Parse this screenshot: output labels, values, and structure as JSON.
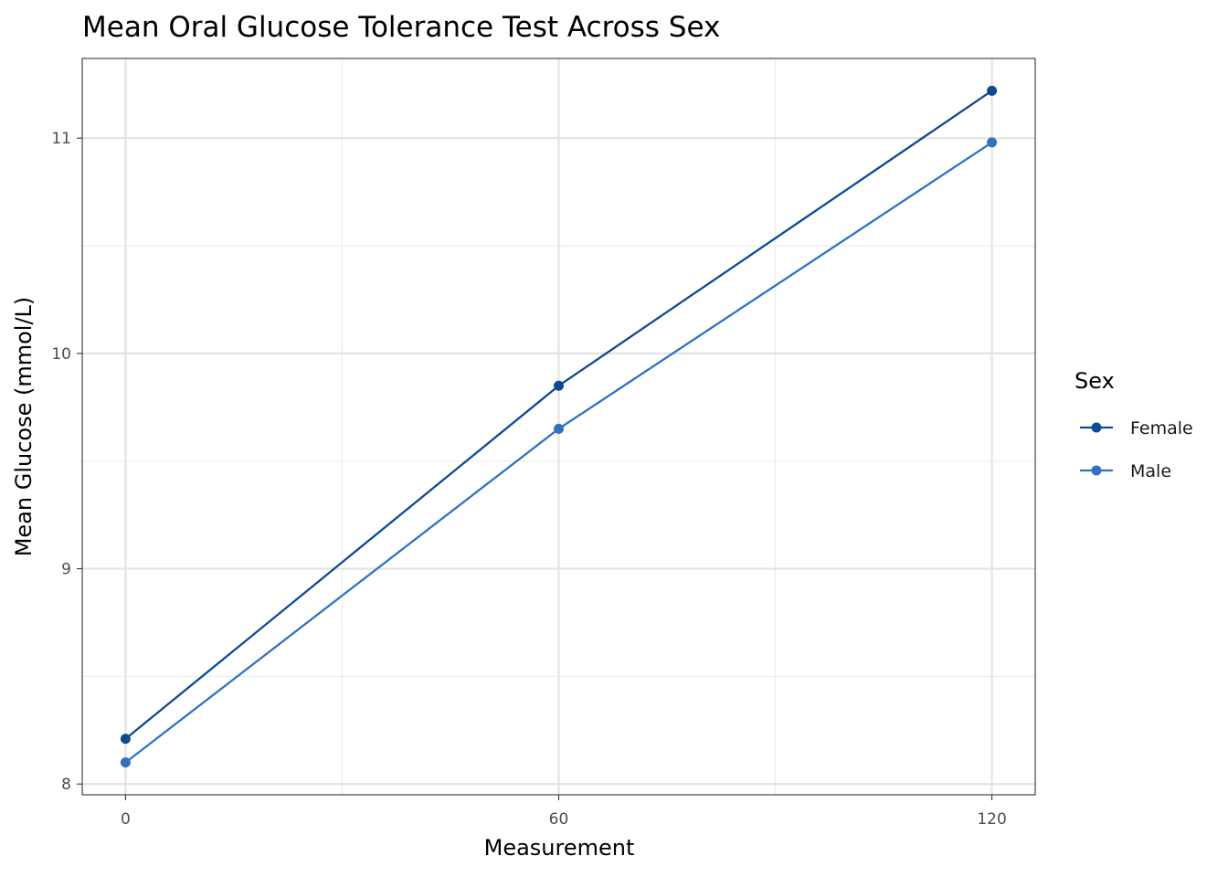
{
  "chart_data": {
    "type": "line",
    "title": "Mean Oral Glucose Tolerance Test Across Sex",
    "xlabel": "Measurement",
    "ylabel": "Mean Glucose (mmol/L)",
    "x": [
      0,
      60,
      120
    ],
    "xlim": [
      -6,
      126
    ],
    "ylim": [
      7.95,
      11.37
    ],
    "x_ticks": [
      0,
      60,
      120
    ],
    "x_tick_labels": [
      "0",
      "60",
      "120"
    ],
    "y_ticks": [
      8,
      9,
      10,
      11
    ],
    "y_tick_labels": [
      "8",
      "9",
      "10",
      "11"
    ],
    "x_minor_ticks": [
      30,
      90
    ],
    "y_minor_ticks": [
      8.5,
      9.5,
      10.5
    ],
    "grid": true,
    "legend": {
      "title": "Sex",
      "placement": "right"
    },
    "series": [
      {
        "name": "Female",
        "values": [
          8.21,
          9.85,
          11.22
        ],
        "color": "#0d4a94"
      },
      {
        "name": "Male",
        "values": [
          8.1,
          9.65,
          10.98
        ],
        "color": "#2f72c0"
      }
    ]
  }
}
